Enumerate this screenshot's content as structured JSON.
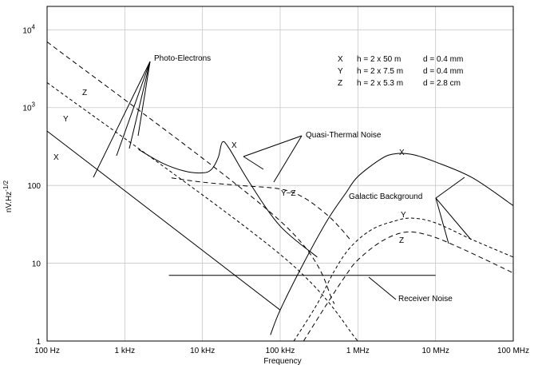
{
  "chart_data": {
    "type": "line",
    "title": "",
    "xlabel": "Frequency",
    "ylabel": "nV.Hz",
    "ylabel_sup": "-1/2",
    "x_scale": "log",
    "y_scale": "log",
    "xlim": [
      100,
      100000000
    ],
    "ylim": [
      1,
      20000
    ],
    "grid": true,
    "x_ticks": [
      {
        "value": 100,
        "label": "100 Hz"
      },
      {
        "value": 1000,
        "label": "1 kHz"
      },
      {
        "value": 10000,
        "label": "10 kHz"
      },
      {
        "value": 100000,
        "label": "100 kHz"
      },
      {
        "value": 1000000,
        "label": "1 MHz"
      },
      {
        "value": 10000000,
        "label": "10 MHz"
      },
      {
        "value": 100000000,
        "label": "100 MHz"
      }
    ],
    "y_ticks": [
      {
        "value": 1,
        "label": "1"
      },
      {
        "value": 10,
        "label": "10"
      },
      {
        "value": 100,
        "label": "100"
      },
      {
        "value": 1000,
        "label": "10",
        "sup": "3"
      },
      {
        "value": 10000,
        "label": "10",
        "sup": "4"
      }
    ],
    "legend_rows": [
      {
        "key": "X",
        "h": "h = 2 x 50 m",
        "d": "d = 0.4 mm"
      },
      {
        "key": "Y",
        "h": "h = 2 x 7.5 m",
        "d": "d = 0.4 mm"
      },
      {
        "key": "Z",
        "h": "h = 2 x 5.3 m",
        "d": "d = 2.8 cm"
      }
    ],
    "series": [
      {
        "name": "X",
        "group": "Photo-Electrons",
        "style": "solid",
        "points": [
          [
            100,
            500
          ],
          [
            100000,
            2.5
          ]
        ]
      },
      {
        "name": "Z",
        "group": "Photo-Electrons",
        "style": "dashed",
        "points": [
          [
            100,
            7000
          ],
          [
            100000,
            35
          ],
          [
            500000,
            3
          ]
        ]
      },
      {
        "name": "Y",
        "group": "Photo-Electrons",
        "style": "dashed-short",
        "points": [
          [
            100,
            2100
          ],
          [
            100000,
            13
          ],
          [
            1000000,
            1
          ]
        ]
      },
      {
        "name": "X",
        "group": "Quasi-Thermal Noise",
        "style": "solid",
        "points": [
          [
            1500,
            290
          ],
          [
            3000,
            195
          ],
          [
            6000,
            152
          ],
          [
            10000,
            145
          ],
          [
            13000,
            160
          ],
          [
            16000,
            230
          ],
          [
            18000,
            360
          ],
          [
            22000,
            300
          ],
          [
            40000,
            110
          ],
          [
            100000,
            30
          ],
          [
            300000,
            12
          ]
        ]
      },
      {
        "name": "Y~Z",
        "group": "Quasi-Thermal Noise",
        "style": "dashed",
        "points": [
          [
            4000,
            125
          ],
          [
            10000,
            110
          ],
          [
            30000,
            100
          ],
          [
            100000,
            90
          ],
          [
            200000,
            70
          ],
          [
            400000,
            42
          ],
          [
            600000,
            28
          ],
          [
            800000,
            20
          ]
        ]
      },
      {
        "name": "X",
        "group": "Galactic Background",
        "style": "solid",
        "points": [
          [
            75000,
            1.2
          ],
          [
            100000,
            2.5
          ],
          [
            200000,
            10
          ],
          [
            400000,
            35
          ],
          [
            700000,
            80
          ],
          [
            1000000,
            130
          ],
          [
            2000000,
            220
          ],
          [
            3000000,
            255
          ],
          [
            5000000,
            250
          ],
          [
            10000000,
            200
          ],
          [
            30000000,
            125
          ],
          [
            100000000,
            55
          ]
        ]
      },
      {
        "name": "Y",
        "group": "Galactic Background",
        "style": "dashed-short",
        "points": [
          [
            150000,
            1
          ],
          [
            300000,
            3
          ],
          [
            500000,
            8
          ],
          [
            800000,
            16
          ],
          [
            1500000,
            27
          ],
          [
            3000000,
            35
          ],
          [
            5000000,
            38
          ],
          [
            10000000,
            33
          ],
          [
            30000000,
            20
          ],
          [
            100000000,
            12
          ]
        ]
      },
      {
        "name": "Z",
        "group": "Galactic Background",
        "style": "dashed",
        "points": [
          [
            200000,
            1
          ],
          [
            400000,
            3
          ],
          [
            700000,
            7
          ],
          [
            1000000,
            11
          ],
          [
            2000000,
            19
          ],
          [
            4000000,
            25
          ],
          [
            8000000,
            23
          ],
          [
            20000000,
            16
          ],
          [
            100000000,
            7.5
          ]
        ]
      },
      {
        "name": "Receiver Noise",
        "group": "Receiver Noise",
        "style": "solid",
        "points": [
          [
            3700,
            7
          ],
          [
            10000000,
            7
          ]
        ]
      }
    ],
    "annotations": [
      {
        "text": "Photo-Electrons",
        "x": 220000000000,
        "y": 0
      },
      {
        "text": "Quasi-Thermal Noise",
        "x": 0,
        "y": 0
      },
      {
        "text": "Galactic Background",
        "x": 0,
        "y": 0
      },
      {
        "text": "Receiver Noise",
        "x": 0,
        "y": 0
      }
    ],
    "labels": {
      "photo": "Photo-Electrons",
      "qtn": "Quasi-Thermal Noise",
      "galactic": "Galactic Background",
      "receiver": "Receiver Noise",
      "x_pe": "X",
      "y_pe": "Y",
      "z_pe": "Z",
      "x_qtn": "X",
      "yz_qtn": "Y~Z",
      "x_gal": "X",
      "y_gal": "Y",
      "z_gal": "Z"
    }
  }
}
